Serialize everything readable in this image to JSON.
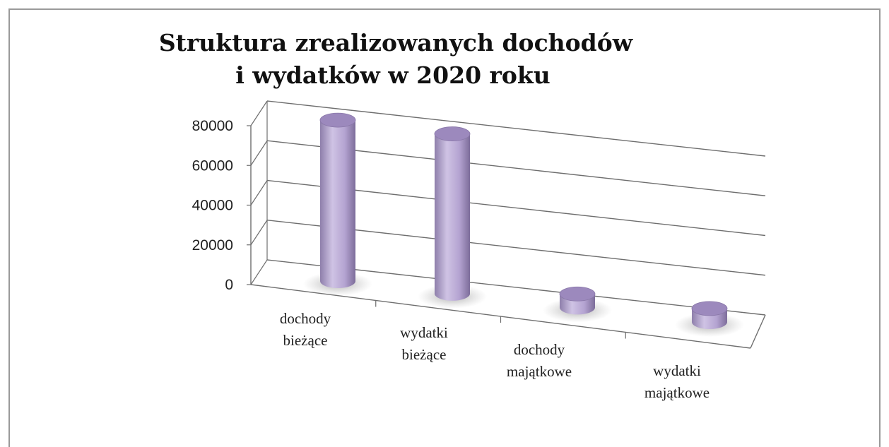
{
  "chart_data": {
    "type": "bar",
    "title_lines": [
      "Struktura zrealizowanych dochodów",
      "i wydatków w  2020 roku"
    ],
    "categories": [
      [
        "dochody",
        "bieżące"
      ],
      [
        "wydatki",
        "bieżące"
      ],
      [
        "dochody",
        "majątkowe"
      ],
      [
        "wydatki",
        "majątkowe"
      ]
    ],
    "values": [
      71500,
      71000,
      6000,
      6000
    ],
    "ylim": [
      0,
      80000
    ],
    "yticks": [
      "0",
      "20000",
      "40000",
      "60000",
      "80000"
    ],
    "grid": true,
    "legend": "none",
    "style": "3d-cylinder",
    "colors": {
      "bar": "#b7a6d3",
      "bar_dark": "#8c7aa8",
      "bar_top": "#9c89bd",
      "grid": "#6e6e6e"
    }
  }
}
